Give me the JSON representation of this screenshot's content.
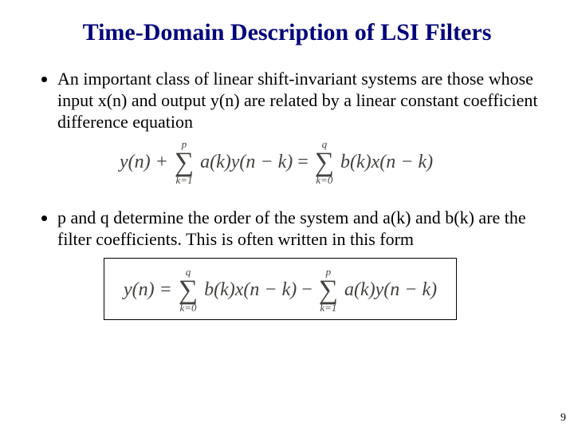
{
  "colors": {
    "title_color": "#00007a",
    "body_color": "#000000",
    "equation_color": "#43423f",
    "background": "#ffffff",
    "box_border": "#000000"
  },
  "typography": {
    "title_fontsize_pt": 22,
    "body_fontsize_pt": 16,
    "equation_fontsize_pt": 18,
    "font_family": "Times New Roman"
  },
  "title": "Time-Domain Description of LSI Filters",
  "bullets": [
    "An important class of linear shift-invariant systems are those whose input x(n) and output y(n) are related by a linear constant coefficient difference equation",
    "p and q  determine the order of the system and a(k) and b(k) are the filter coefficients. This is often written in this form"
  ],
  "equations": {
    "eq1": {
      "lhs_pre": "y(n) + ",
      "sum_a": {
        "upper": "p",
        "lower": "k=1"
      },
      "mid_a": "a(k)y(n − k)",
      "equals": " = ",
      "sum_b": {
        "upper": "q",
        "lower": "k=0"
      },
      "mid_b": "b(k)x(n − k)"
    },
    "eq2": {
      "lhs_pre": "y(n) = ",
      "sum_b": {
        "upper": "q",
        "lower": "k=0"
      },
      "mid_b": "b(k)x(n − k)",
      "minus": " − ",
      "sum_a": {
        "upper": "p",
        "lower": "k=1"
      },
      "mid_a": "a(k)y(n − k)"
    }
  },
  "page_number": "9"
}
